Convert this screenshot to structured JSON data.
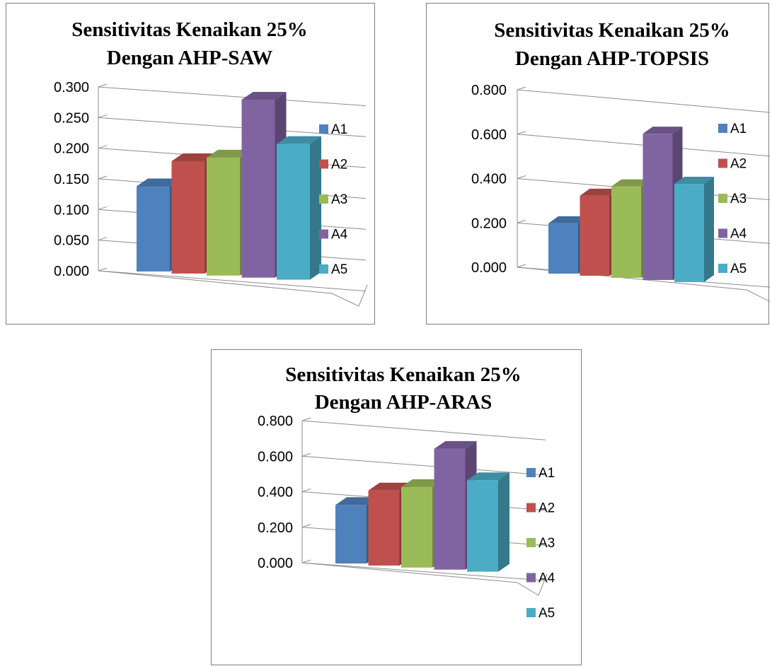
{
  "chart_data": [
    {
      "type": "bar",
      "title": [
        "Sensitivitas Kenaikan 25%",
        "Dengan AHP-SAW"
      ],
      "categories": [
        "A1",
        "A2",
        "A3",
        "A4",
        "A5"
      ],
      "values": [
        0.135,
        0.178,
        0.187,
        0.282,
        0.215
      ],
      "ylim": [
        0,
        0.3
      ],
      "yticks": [
        "0.000",
        "0.050",
        "0.100",
        "0.150",
        "0.200",
        "0.250",
        "0.300"
      ],
      "xlabel": "",
      "ylabel": "",
      "legend": [
        "A1",
        "A2",
        "A3",
        "A4",
        "A5"
      ],
      "legend_position": "right",
      "grid": true,
      "style": "3d-column"
    },
    {
      "type": "bar",
      "title": [
        "Sensitivitas Kenaikan 25%",
        "Dengan AHP-TOPSIS"
      ],
      "categories": [
        "A1",
        "A2",
        "A3",
        "A4",
        "A5"
      ],
      "values": [
        0.22,
        0.35,
        0.4,
        0.64,
        0.43
      ],
      "ylim": [
        0,
        0.8
      ],
      "yticks": [
        "0.000",
        "0.200",
        "0.400",
        "0.600",
        "0.800"
      ],
      "xlabel": "",
      "ylabel": "",
      "legend": [
        "A1",
        "A2",
        "A3",
        "A4",
        "A5"
      ],
      "legend_position": "right",
      "grid": true,
      "style": "3d-column"
    },
    {
      "type": "bar",
      "title": [
        "Sensitivitas Kenaikan 25%",
        "Dengan AHP-ARAS"
      ],
      "categories": [
        "A1",
        "A2",
        "A3",
        "A4",
        "A5"
      ],
      "values": [
        0.32,
        0.41,
        0.44,
        0.66,
        0.5
      ],
      "ylim": [
        0,
        0.8
      ],
      "yticks": [
        "0.000",
        "0.200",
        "0.400",
        "0.600",
        "0.800"
      ],
      "xlabel": "",
      "ylabel": "",
      "legend": [
        "A1",
        "A2",
        "A3",
        "A4",
        "A5"
      ],
      "legend_position": "right",
      "grid": true,
      "style": "3d-column"
    }
  ],
  "colors": {
    "series": [
      "#4f81bd",
      "#c0504d",
      "#9bbb59",
      "#8064a2",
      "#4bacc6"
    ],
    "grid": "#8c8c8c",
    "border": "#7f7f7f"
  }
}
